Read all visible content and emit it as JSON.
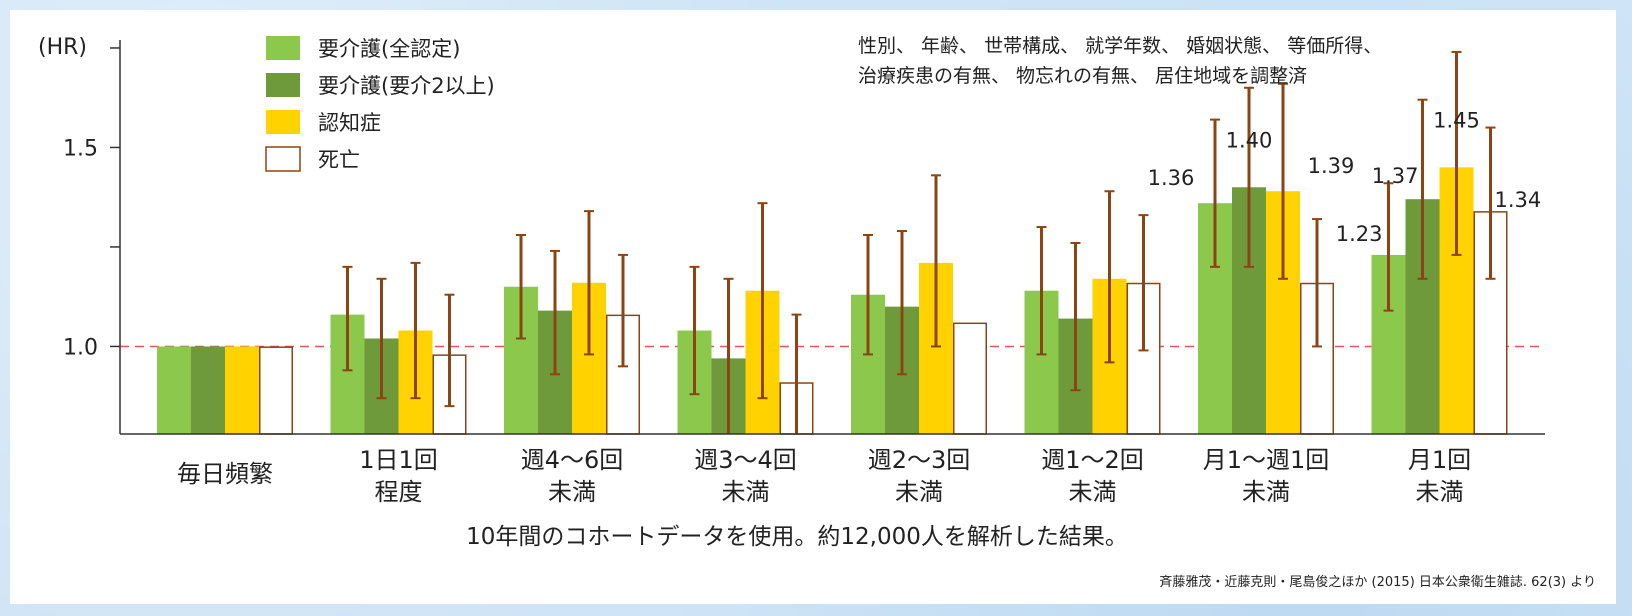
{
  "chart_data": {
    "type": "bar",
    "y_unit": "(HR)",
    "categories": [
      [
        "毎日頻繁"
      ],
      [
        "1日1回",
        "程度"
      ],
      [
        "週4～6回",
        "未満"
      ],
      [
        "週3～4回",
        "未満"
      ],
      [
        "週2～3回",
        "未満"
      ],
      [
        "週1～2回",
        "未満"
      ],
      [
        "月1～週1回",
        "未満"
      ],
      [
        "月1回",
        "未満"
      ]
    ],
    "yticks": [
      1.0,
      1.5
    ],
    "ytick_labels": [
      "1.0",
      "1.5"
    ],
    "ylim": [
      0.78,
      1.77
    ],
    "reference_line": 1.0,
    "series": [
      {
        "name": "要介護(全認定)",
        "color": "#8cc84b",
        "fill": true,
        "values": [
          1.0,
          1.08,
          1.15,
          1.04,
          1.13,
          1.14,
          1.36,
          1.23
        ],
        "ci_low": [
          null,
          0.94,
          1.02,
          0.88,
          0.98,
          0.98,
          1.2,
          1.09
        ],
        "ci_high": [
          null,
          1.2,
          1.28,
          1.2,
          1.28,
          1.3,
          1.57,
          1.41
        ]
      },
      {
        "name": "要介護(要介2以上)",
        "color": "#6e9a3c",
        "fill": true,
        "values": [
          1.0,
          1.02,
          1.09,
          0.97,
          1.1,
          1.07,
          1.4,
          1.37
        ],
        "ci_low": [
          null,
          0.87,
          0.93,
          0.77,
          0.93,
          0.89,
          1.2,
          1.17
        ],
        "ci_high": [
          null,
          1.17,
          1.24,
          1.17,
          1.29,
          1.26,
          1.65,
          1.62
        ]
      },
      {
        "name": "認知症",
        "color": "#ffd200",
        "fill": true,
        "values": [
          1.0,
          1.04,
          1.16,
          1.14,
          1.21,
          1.17,
          1.39,
          1.45
        ],
        "ci_low": [
          null,
          0.87,
          0.98,
          0.87,
          1.0,
          0.96,
          1.17,
          1.23
        ],
        "ci_high": [
          null,
          1.21,
          1.34,
          1.36,
          1.43,
          1.39,
          1.66,
          1.74
        ]
      },
      {
        "name": "死亡",
        "color": "#8b4513",
        "fill": false,
        "values": [
          1.0,
          0.98,
          1.08,
          0.91,
          1.06,
          1.16,
          1.16,
          1.34
        ],
        "ci_low": [
          null,
          0.85,
          0.95,
          0.77,
          null,
          0.99,
          1.0,
          1.17
        ],
        "ci_high": [
          null,
          1.13,
          1.23,
          1.08,
          null,
          1.33,
          1.32,
          1.55
        ]
      }
    ],
    "error_bar_color": "#8b4513",
    "reference_line_color": "#d85a5a",
    "data_labels": [
      {
        "category": 6,
        "series": 0,
        "text": "1.36"
      },
      {
        "category": 6,
        "series": 1,
        "text": "1.40"
      },
      {
        "category": 6,
        "series": 2,
        "text": "1.39"
      },
      {
        "category": 7,
        "series": 0,
        "text": "1.23"
      },
      {
        "category": 7,
        "series": 1,
        "text": "1.37"
      },
      {
        "category": 7,
        "series": 2,
        "text": "1.45"
      },
      {
        "category": 7,
        "series": 3,
        "text": "1.34"
      }
    ],
    "legend_position": "top-left",
    "grid": false
  },
  "adjustment_note": [
    "性別、 年齢、 世帯構成、 就学年数、 婚姻状態、 等価所得、",
    "治療疾患の有無、 物忘れの有無、 居住地域を調整済"
  ],
  "footnote": "10年間のコホートデータを使用。約12,000人を解析した結果。",
  "source": "斉藤雅茂・近藤克則・尾島俊之ほか (2015) 日本公衆衛生雑誌. 62(3) より"
}
